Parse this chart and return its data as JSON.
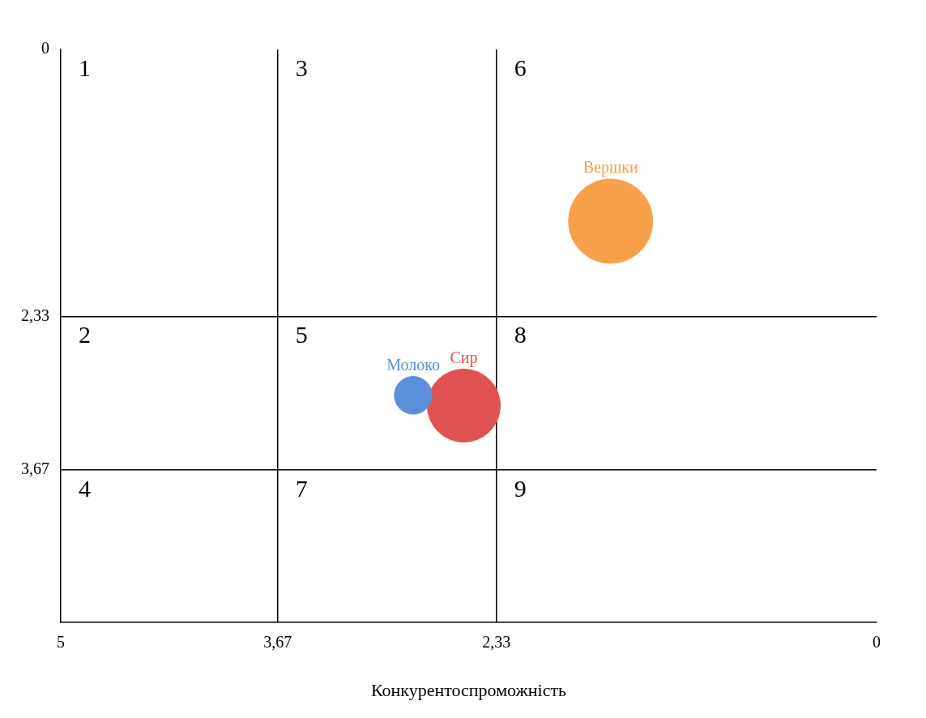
{
  "chart_data": {
    "type": "bubble",
    "xlabel": "Конкурентоспроможність",
    "xlim": [
      5,
      0
    ],
    "xticks": [
      5,
      {
        "value": 3.67,
        "label": "3,67"
      },
      {
        "value": 2.33,
        "label": "2,33"
      },
      0
    ],
    "ylim": [
      5,
      0
    ],
    "yticks": [
      0,
      {
        "value": 2.33,
        "label": "2,33"
      },
      {
        "value": 3.67,
        "label": "3,67"
      }
    ],
    "grid": true,
    "legend": false,
    "annotations": [
      "1",
      "3",
      "6",
      "2",
      "5",
      "8",
      "4",
      "7",
      "9"
    ],
    "series": [
      {
        "name": "Вершки",
        "color": "#f7a04a",
        "x": [
          1.63
        ],
        "values": [
          1.5
        ],
        "sizes": [
          1
        ]
      },
      {
        "name": "Молоко",
        "color": "#5b8fd9",
        "x": [
          2.84
        ],
        "values": [
          3.02
        ],
        "sizes": [
          0.2
        ]
      },
      {
        "name": "Сир",
        "color": "#e05252",
        "x": [
          2.53
        ],
        "values": [
          3.11
        ],
        "sizes": [
          0.75
        ]
      }
    ]
  }
}
